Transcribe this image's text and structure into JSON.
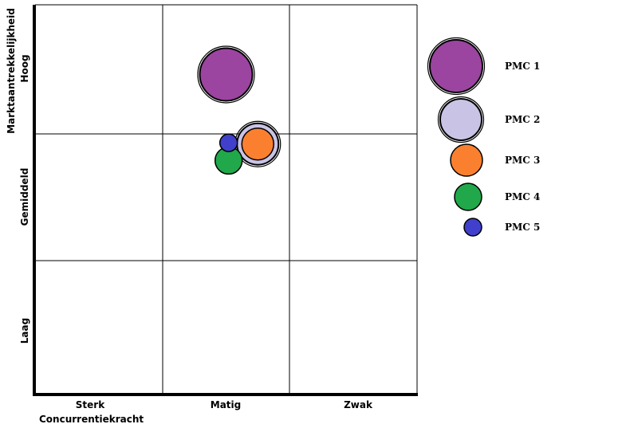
{
  "chart_data": {
    "type": "scatter",
    "subtype": "bubble-matrix",
    "xlabel": "Concurrentiekracht",
    "ylabel": "Marktaantrekkelijkheid",
    "x_categories": [
      "Sterk",
      "Matig",
      "Zwak"
    ],
    "y_categories": [
      "Hoog",
      "Gemiddeld",
      "Laag"
    ],
    "xlim": [
      0,
      3
    ],
    "ylim": [
      0,
      3
    ],
    "grid": true,
    "legend_position": "right",
    "series": [
      {
        "name": "PMC 1",
        "x": 1.5,
        "y": 2.46,
        "size": 5,
        "color": "#9b44a0"
      },
      {
        "name": "PMC 2",
        "x": 1.75,
        "y": 1.92,
        "size": 4,
        "color": "#c9c4e6"
      },
      {
        "name": "PMC 3",
        "x": 1.75,
        "y": 1.92,
        "size": 3,
        "color": "#fa8030"
      },
      {
        "name": "PMC 4",
        "x": 1.52,
        "y": 1.79,
        "size": 2,
        "color": "#20a84a"
      },
      {
        "name": "PMC 5",
        "x": 1.52,
        "y": 1.93,
        "size": 1,
        "color": "#4040cc"
      }
    ]
  }
}
